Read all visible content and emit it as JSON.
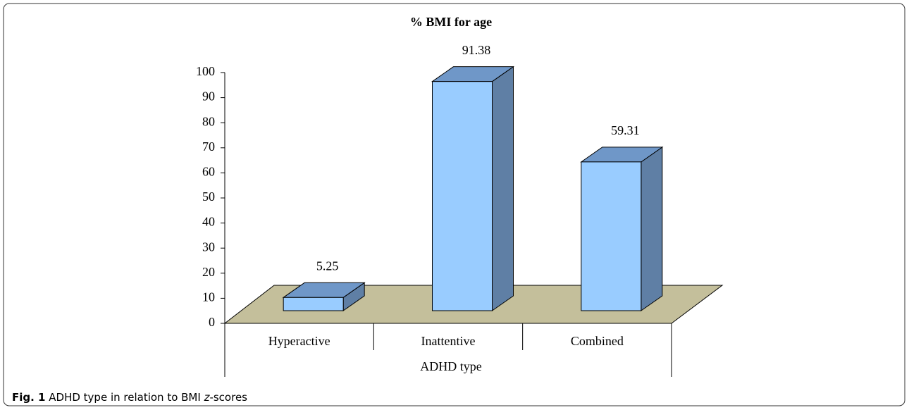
{
  "chart_data": {
    "type": "bar3d",
    "title": "% BMI for age",
    "categories": [
      "Hyperactive",
      "Inattentive",
      "Combined"
    ],
    "values": [
      5.25,
      91.38,
      59.31
    ],
    "x_label": "ADHD type",
    "ylim": [
      0,
      100
    ],
    "yticks": [
      0,
      10,
      20,
      30,
      40,
      50,
      60,
      70,
      80,
      90,
      100
    ],
    "colors": {
      "front": "#99ccff",
      "side": "#5f7fa5",
      "top": "#6f97c8",
      "floor": "#c4bf9b"
    }
  },
  "caption": {
    "label": "Fig. 1",
    "text": [
      "ADHD type in relation to BMI ",
      "z",
      "-scores"
    ]
  }
}
